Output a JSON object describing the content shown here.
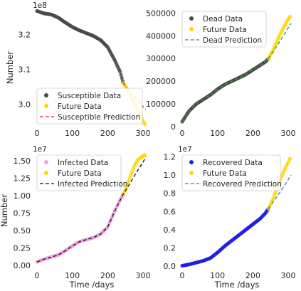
{
  "chart_data": [
    {
      "type": "scatter",
      "xlabel": "",
      "ylabel": "Number",
      "offset_label": "1e8",
      "xlim": [
        -8,
        318
      ],
      "ylim": [
        2.935,
        3.275
      ],
      "xticks": [
        0,
        100,
        200,
        300
      ],
      "xtick_labels": [
        "0",
        "100",
        "200",
        "300"
      ],
      "yticks": [
        3.0,
        3.1,
        3.2
      ],
      "ytick_labels": [
        "3.0",
        "3.1",
        "3.2"
      ],
      "legend_position": "lower-left",
      "series": [
        {
          "name": "Susceptible Data",
          "kind": "scatter",
          "color": "#4a4a4a",
          "x": [
            0,
            20,
            40,
            60,
            80,
            100,
            120,
            140,
            160,
            180,
            200,
            220,
            235,
            244
          ],
          "y": [
            3.268,
            3.261,
            3.258,
            3.249,
            3.235,
            3.222,
            3.212,
            3.204,
            3.196,
            3.184,
            3.164,
            3.126,
            3.093,
            3.061
          ]
        },
        {
          "name": "Future Data",
          "kind": "scatter",
          "color": "#ffd700",
          "x": [
            244,
            255,
            265,
            275,
            285,
            295,
            305
          ],
          "y": [
            3.061,
            3.042,
            3.022,
            3.002,
            2.982,
            2.962,
            2.942
          ]
        },
        {
          "name": "Susceptible Prediction",
          "kind": "line",
          "color": "#e8262a",
          "x": [
            244,
            260,
            280,
            300,
            308
          ],
          "y": [
            3.061,
            3.041,
            3.016,
            2.993,
            2.984
          ]
        }
      ]
    },
    {
      "type": "scatter",
      "xlabel": "",
      "ylabel": "",
      "offset_label": "",
      "xlim": [
        -8,
        318
      ],
      "ylim": [
        0,
        520000
      ],
      "xticks": [
        0,
        100,
        200,
        300
      ],
      "xtick_labels": [
        "0",
        "100",
        "200",
        "300"
      ],
      "yticks": [
        0,
        100000,
        200000,
        300000,
        400000,
        500000
      ],
      "ytick_labels": [
        "0",
        "100000",
        "200000",
        "300000",
        "400000",
        "500000"
      ],
      "legend_position": "top-left",
      "series": [
        {
          "name": "Dead Data",
          "kind": "scatter",
          "color": "#4a4a4a",
          "x": [
            0,
            20,
            40,
            60,
            80,
            100,
            120,
            140,
            160,
            180,
            200,
            220,
            235,
            244
          ],
          "y": [
            22000,
            70000,
            100000,
            120000,
            140000,
            165000,
            185000,
            200000,
            215000,
            230000,
            250000,
            270000,
            285000,
            300000
          ]
        },
        {
          "name": "Future Data",
          "kind": "scatter",
          "color": "#ffd700",
          "x": [
            244,
            255,
            265,
            275,
            285,
            295,
            305
          ],
          "y": [
            300000,
            330000,
            365000,
            400000,
            430000,
            460000,
            485000
          ]
        },
        {
          "name": "Dead Prediction",
          "kind": "line",
          "color": "#2ca02c",
          "x": [
            0,
            20,
            40,
            60,
            80,
            100,
            120,
            140,
            160,
            180,
            200,
            220,
            244,
            270,
            290,
            308
          ],
          "y": [
            22000,
            70000,
            100000,
            120000,
            140000,
            165000,
            185000,
            200000,
            215000,
            230000,
            250000,
            270000,
            300000,
            360000,
            410000,
            455000
          ]
        }
      ]
    },
    {
      "type": "scatter",
      "xlabel": "Time /days",
      "ylabel": "Number",
      "offset_label": "1e7",
      "xlim": [
        -8,
        318
      ],
      "ylim": [
        -0.05,
        1.62
      ],
      "xticks": [
        0,
        100,
        200,
        300
      ],
      "xtick_labels": [
        "0",
        "100",
        "200",
        "300"
      ],
      "yticks": [
        0.0,
        0.25,
        0.5,
        0.75,
        1.0,
        1.25,
        1.5
      ],
      "ytick_labels": [
        "0.00",
        "0.25",
        "0.50",
        "0.75",
        "1.00",
        "1.25",
        "1.50"
      ],
      "legend_position": "top-left",
      "series": [
        {
          "name": "Infected Data",
          "kind": "scatter",
          "color": "#f0a0e0",
          "x": [
            0,
            20,
            40,
            60,
            80,
            100,
            120,
            140,
            160,
            180,
            200,
            220,
            235,
            244
          ],
          "y": [
            0.05,
            0.09,
            0.12,
            0.15,
            0.21,
            0.28,
            0.34,
            0.37,
            0.4,
            0.45,
            0.55,
            0.78,
            0.94,
            1.02
          ]
        },
        {
          "name": "Future Data",
          "kind": "scatter",
          "color": "#ffd700",
          "x": [
            244,
            255,
            265,
            275,
            285,
            295,
            305
          ],
          "y": [
            1.02,
            1.15,
            1.29,
            1.42,
            1.51,
            1.55,
            1.58
          ]
        },
        {
          "name": "Infected Prediction",
          "kind": "line",
          "color": "#111111",
          "x": [
            0,
            20,
            40,
            60,
            80,
            100,
            120,
            140,
            160,
            180,
            200,
            220,
            244,
            260,
            280,
            300,
            308
          ],
          "y": [
            0.05,
            0.09,
            0.12,
            0.15,
            0.21,
            0.28,
            0.34,
            0.37,
            0.4,
            0.45,
            0.55,
            0.78,
            1.02,
            1.15,
            1.32,
            1.48,
            1.55
          ]
        }
      ]
    },
    {
      "type": "scatter",
      "xlabel": "Time /days",
      "ylabel": "",
      "offset_label": "1e7",
      "xlim": [
        -8,
        318
      ],
      "ylim": [
        -0.03,
        1.25
      ],
      "xticks": [
        0,
        100,
        200,
        300
      ],
      "xtick_labels": [
        "0",
        "100",
        "200",
        "300"
      ],
      "yticks": [
        0.0,
        0.2,
        0.4,
        0.6,
        0.8,
        1.0,
        1.2
      ],
      "ytick_labels": [
        "0.0",
        "0.2",
        "0.4",
        "0.6",
        "0.8",
        "1.0",
        "1.2"
      ],
      "legend_position": "top-left",
      "series": [
        {
          "name": "Recovered Data",
          "kind": "scatter",
          "color": "#1f1fe8",
          "x": [
            0,
            20,
            40,
            60,
            80,
            100,
            120,
            140,
            160,
            180,
            200,
            220,
            235,
            244
          ],
          "y": [
            0.005,
            0.02,
            0.04,
            0.06,
            0.09,
            0.15,
            0.22,
            0.28,
            0.34,
            0.4,
            0.46,
            0.52,
            0.58,
            0.63
          ]
        },
        {
          "name": "Future Data",
          "kind": "scatter",
          "color": "#ffd700",
          "x": [
            244,
            255,
            265,
            275,
            285,
            295,
            305
          ],
          "y": [
            0.63,
            0.72,
            0.82,
            0.92,
            1.02,
            1.1,
            1.18
          ]
        },
        {
          "name": "Recovered Prediction",
          "kind": "line",
          "color": "#3b7fb0",
          "x": [
            244,
            260,
            280,
            300,
            308
          ],
          "y": [
            0.63,
            0.72,
            0.83,
            0.95,
            1.0
          ]
        }
      ]
    }
  ]
}
